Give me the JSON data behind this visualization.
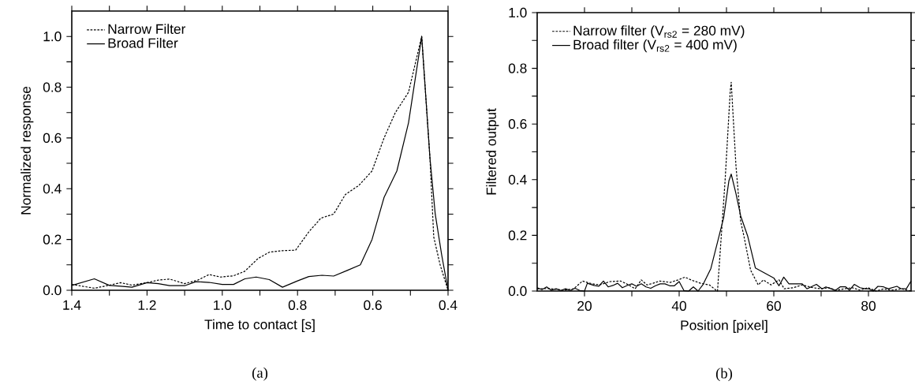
{
  "chart_data": [
    {
      "type": "line",
      "xlabel": "Time to contact [s]",
      "ylabel": "Normalized response",
      "annotations": [
        "(a)"
      ],
      "xlim": [
        1.4,
        0.4
      ],
      "ylim": [
        0,
        1.1
      ],
      "xticks": [
        {
          "value": 1.4,
          "label": "1.4"
        },
        {
          "value": 1.3,
          "label": null
        },
        {
          "value": 1.2,
          "label": "1.2"
        },
        {
          "value": 1.1,
          "label": null
        },
        {
          "value": 1.0,
          "label": "1.0"
        },
        {
          "value": 0.9,
          "label": null
        },
        {
          "value": 0.8,
          "label": "0.8"
        },
        {
          "value": 0.7,
          "label": null
        },
        {
          "value": 0.6,
          "label": "0.6"
        },
        {
          "value": 0.5,
          "label": null
        },
        {
          "value": 0.4,
          "label": "0.4"
        }
      ],
      "yticks": [
        {
          "value": 0.0,
          "label": "0.0"
        },
        {
          "value": 0.1,
          "label": null
        },
        {
          "value": 0.2,
          "label": "0.2"
        },
        {
          "value": 0.3,
          "label": null
        },
        {
          "value": 0.4,
          "label": "0.4"
        },
        {
          "value": 0.5,
          "label": null
        },
        {
          "value": 0.6,
          "label": "0.6"
        },
        {
          "value": 0.7,
          "label": null
        },
        {
          "value": 0.8,
          "label": "0.8"
        },
        {
          "value": 0.9,
          "label": null
        },
        {
          "value": 1.0,
          "label": "1.0"
        }
      ],
      "grid": false,
      "legend": "top left",
      "marker": "none",
      "series": [
        {
          "name": "Narrow Filter",
          "color": "#000000",
          "line_style": "dashed",
          "x": [
            1.4,
            1.34,
            1.3,
            1.27,
            1.24,
            1.2,
            1.17,
            1.14,
            1.1,
            1.065,
            1.035,
            1.005,
            0.97,
            0.94,
            0.905,
            0.875,
            0.84,
            0.805,
            0.77,
            0.738,
            0.704,
            0.673,
            0.637,
            0.602,
            0.57,
            0.54,
            0.505,
            0.47,
            0.448,
            0.438,
            0.421,
            0.4
          ],
          "values": [
            0.023,
            0.008,
            0.02,
            0.03,
            0.02,
            0.03,
            0.04,
            0.044,
            0.026,
            0.04,
            0.062,
            0.052,
            0.057,
            0.075,
            0.125,
            0.15,
            0.156,
            0.158,
            0.23,
            0.284,
            0.3,
            0.377,
            0.413,
            0.47,
            0.6,
            0.7,
            0.78,
            1.0,
            0.52,
            0.21,
            0.1,
            0.0
          ]
        },
        {
          "name": "Broad Filter",
          "color": "#000000",
          "line_style": "solid",
          "x": [
            1.4,
            1.34,
            1.3,
            1.27,
            1.24,
            1.2,
            1.17,
            1.14,
            1.1,
            1.07,
            1.035,
            1.0,
            0.97,
            0.94,
            0.91,
            0.875,
            0.84,
            0.8,
            0.77,
            0.735,
            0.704,
            0.668,
            0.633,
            0.602,
            0.57,
            0.536,
            0.505,
            0.47,
            0.448,
            0.434,
            0.417,
            0.4
          ],
          "values": [
            0.019,
            0.045,
            0.019,
            0.016,
            0.012,
            0.03,
            0.026,
            0.018,
            0.018,
            0.034,
            0.031,
            0.023,
            0.023,
            0.045,
            0.052,
            0.042,
            0.012,
            0.037,
            0.054,
            0.059,
            0.056,
            0.078,
            0.1,
            0.2,
            0.366,
            0.47,
            0.66,
            1.0,
            0.52,
            0.3,
            0.14,
            0.0
          ]
        }
      ]
    },
    {
      "type": "line",
      "xlabel": "Position [pixel]",
      "ylabel": "Filtered output",
      "annotations": [
        "(b)"
      ],
      "xlim": [
        10,
        89
      ],
      "ylim": [
        0,
        1.0
      ],
      "xticks": [
        20,
        {
          "value": 30,
          "label": null
        },
        40,
        {
          "value": 50,
          "label": null
        },
        60,
        {
          "value": 70,
          "label": null
        },
        80
      ],
      "yticks": [
        {
          "value": 0.0,
          "label": "0.0"
        },
        {
          "value": 0.1,
          "label": null
        },
        {
          "value": 0.2,
          "label": "0.2"
        },
        {
          "value": 0.3,
          "label": null
        },
        {
          "value": 0.4,
          "label": "0.4"
        },
        {
          "value": 0.5,
          "label": null
        },
        {
          "value": 0.6,
          "label": "0.6"
        },
        {
          "value": 0.7,
          "label": null
        },
        {
          "value": 0.8,
          "label": "0.8"
        },
        {
          "value": 0.9,
          "label": null
        },
        {
          "value": 1.0,
          "label": "1.0"
        }
      ],
      "grid": false,
      "legend": "top left",
      "marker": "none",
      "series": [
        {
          "name": "Narrow filter (V$_{rs2}$ = 280 mV)",
          "color": "#000000",
          "line_style": "dashed",
          "x": [
            10,
            12.7,
            15.5,
            17.7,
            19.6,
            21.6,
            23.2,
            25.4,
            27.6,
            29,
            30.7,
            32,
            33.2,
            34.5,
            35.9,
            38.1,
            39.8,
            41.2,
            42.5,
            44.5,
            46.4,
            47.8,
            48.1,
            49.7,
            50.8,
            51,
            52,
            53,
            53.7,
            55.1,
            56.7,
            57.8,
            59.4,
            61.1,
            62.2,
            64.1,
            66,
            68.3,
            70,
            71.6,
            73.2,
            74.9,
            76.6,
            78.2,
            79.9,
            81.6,
            83.3,
            84.8,
            87,
            89
          ],
          "values": [
            0.008,
            0.009,
            0.003,
            0.008,
            0.036,
            0.026,
            0.022,
            0.034,
            0.036,
            0.025,
            0.008,
            0.04,
            0.022,
            0.028,
            0.036,
            0.031,
            0.04,
            0.05,
            0.04,
            0.028,
            0.022,
            0.003,
            0.0,
            0.395,
            0.72,
            0.75,
            0.45,
            0.25,
            0.196,
            0.075,
            0.022,
            0.04,
            0.022,
            0.04,
            0.008,
            0.012,
            0.022,
            0.012,
            0.008,
            0.012,
            0.003,
            0.008,
            0.012,
            0.003,
            0.012,
            0.0,
            0.008,
            0.003,
            0.008,
            0.0
          ]
        },
        {
          "name": "Broad filter (V$_{rs2}$ = 400 mV)",
          "color": "#000000",
          "line_style": "solid",
          "x": [
            10,
            11,
            12,
            13,
            14,
            15,
            16,
            17,
            18,
            19,
            20,
            20.6,
            22,
            23,
            24,
            25,
            26,
            27,
            28,
            29,
            30,
            31,
            32,
            33,
            34,
            35,
            36,
            37,
            38,
            39,
            40,
            41,
            42,
            43,
            44,
            45,
            46.7,
            49.4,
            50.5,
            51,
            52,
            53,
            54.5,
            56.1,
            60,
            61.1,
            62.1,
            63.2,
            66,
            67,
            69,
            70.2,
            71,
            72.1,
            73,
            74,
            75.2,
            76,
            77,
            78.2,
            79.3,
            80.1,
            81,
            82,
            83.2,
            84.2,
            86,
            86.8,
            88,
            89
          ],
          "values": [
            0.012,
            0.005,
            0.015,
            0.003,
            0.008,
            0.002,
            0.008,
            0.002,
            0.01,
            0.002,
            0.0,
            0.028,
            0.02,
            0.017,
            0.036,
            0.015,
            0.02,
            0.028,
            0.012,
            0.02,
            0.026,
            0.017,
            0.026,
            0.015,
            0.01,
            0.019,
            0.026,
            0.026,
            0.019,
            0.019,
            0.034,
            0.002,
            0.0,
            0.015,
            0.0,
            0.022,
            0.081,
            0.263,
            0.395,
            0.42,
            0.35,
            0.27,
            0.196,
            0.083,
            0.047,
            0.019,
            0.05,
            0.026,
            0.026,
            0.008,
            0.024,
            0.008,
            0.015,
            0.008,
            0.002,
            0.015,
            0.015,
            0.003,
            0.024,
            0.012,
            0.008,
            0.008,
            0.0,
            0.017,
            0.015,
            0.008,
            0.017,
            0.009,
            0.008,
            0.036
          ]
        }
      ]
    }
  ]
}
